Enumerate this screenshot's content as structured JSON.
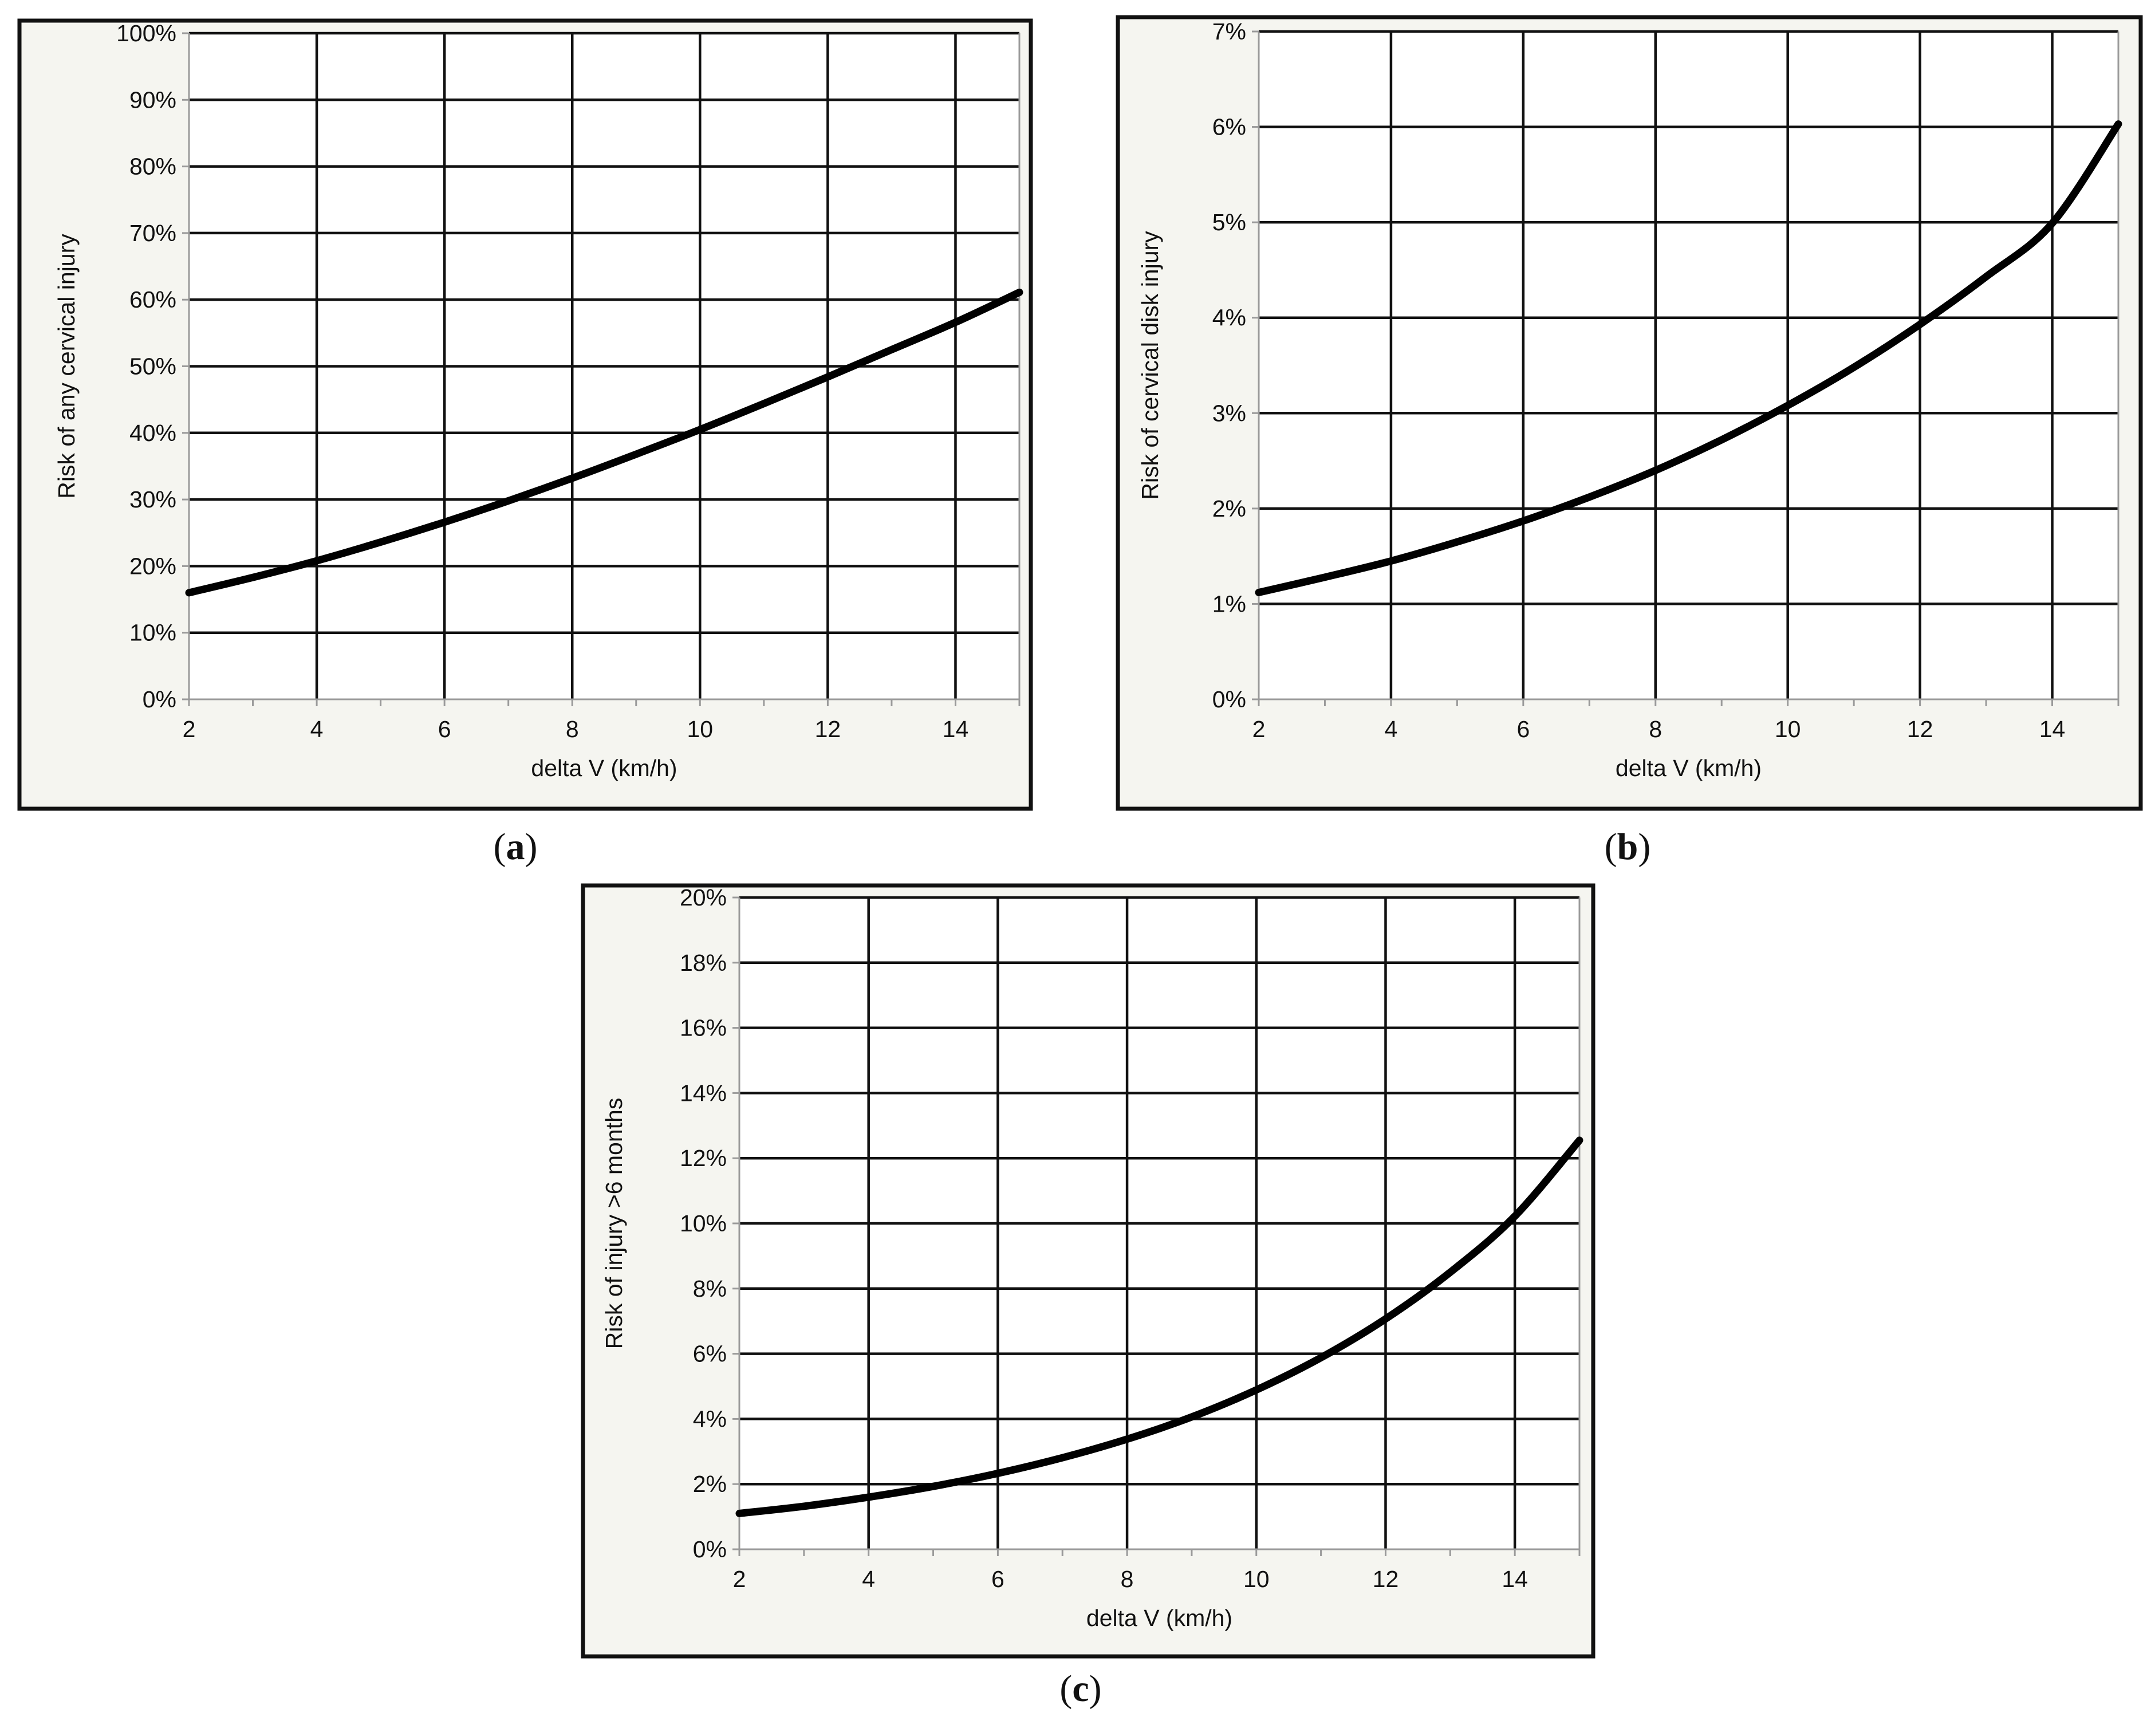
{
  "chart_data": [
    {
      "type": "line",
      "caption": "a",
      "xlabel": "delta V (km/h)",
      "ylabel": "Risk of any cervical injury",
      "xlim": [
        2,
        15
      ],
      "ylim": [
        0,
        1.0
      ],
      "xticks": [
        "2",
        "4",
        "6",
        "8",
        "10",
        "12",
        "14"
      ],
      "xtick_values": [
        2,
        4,
        6,
        8,
        10,
        12,
        14
      ],
      "yticks": [
        "0%",
        "10%",
        "20%",
        "30%",
        "40%",
        "50%",
        "60%",
        "70%",
        "80%",
        "90%",
        "100%"
      ],
      "ytick_values": [
        0,
        0.1,
        0.2,
        0.3,
        0.4,
        0.5,
        0.6,
        0.7,
        0.8,
        0.9,
        1.0
      ],
      "grid": true,
      "series": [
        {
          "x": [
            2,
            3,
            4,
            5,
            6,
            7,
            8,
            9,
            10,
            11,
            12,
            13,
            14,
            15
          ],
          "values": [
            0.16,
            0.183,
            0.208,
            0.236,
            0.266,
            0.298,
            0.332,
            0.368,
            0.405,
            0.444,
            0.484,
            0.525,
            0.566,
            0.611
          ]
        }
      ]
    },
    {
      "type": "line",
      "caption": "b",
      "xlabel": "delta V (km/h)",
      "ylabel": "Risk of cervical disk injury",
      "xlim": [
        2,
        15
      ],
      "ylim": [
        0,
        0.07
      ],
      "xticks": [
        "2",
        "4",
        "6",
        "8",
        "10",
        "12",
        "14"
      ],
      "xtick_values": [
        2,
        4,
        6,
        8,
        10,
        12,
        14
      ],
      "yticks": [
        "0%",
        "1%",
        "2%",
        "3%",
        "4%",
        "5%",
        "6%",
        "7%"
      ],
      "ytick_values": [
        0,
        0.01,
        0.02,
        0.03,
        0.04,
        0.05,
        0.06,
        0.07
      ],
      "grid": true,
      "series": [
        {
          "x": [
            2,
            3,
            4,
            5,
            6,
            7,
            8,
            9,
            10,
            11,
            12,
            13,
            14,
            15
          ],
          "values": [
            0.0112,
            0.0128,
            0.0145,
            0.0165,
            0.0187,
            0.0212,
            0.024,
            0.0272,
            0.0308,
            0.0348,
            0.0393,
            0.0443,
            0.0499,
            0.0603
          ]
        }
      ]
    },
    {
      "type": "line",
      "caption": "c",
      "xlabel": "delta V (km/h)",
      "ylabel": "Risk of injury >6 months",
      "xlim": [
        2,
        15
      ],
      "ylim": [
        0,
        0.2
      ],
      "xticks": [
        "2",
        "4",
        "6",
        "8",
        "10",
        "12",
        "14"
      ],
      "xtick_values": [
        2,
        4,
        6,
        8,
        10,
        12,
        14
      ],
      "yticks": [
        "0%",
        "2%",
        "4%",
        "6%",
        "8%",
        "10%",
        "12%",
        "14%",
        "16%",
        "18%",
        "20%"
      ],
      "ytick_values": [
        0,
        0.02,
        0.04,
        0.06,
        0.08,
        0.1,
        0.12,
        0.14,
        0.16,
        0.18,
        0.2
      ],
      "grid": true,
      "series": [
        {
          "x": [
            2,
            3,
            4,
            5,
            6,
            7,
            8,
            9,
            10,
            11,
            12,
            13,
            14,
            15
          ],
          "values": [
            0.011,
            0.0132,
            0.016,
            0.0193,
            0.0233,
            0.0281,
            0.0338,
            0.0406,
            0.0489,
            0.0588,
            0.0707,
            0.085,
            0.1022,
            0.1255
          ]
        }
      ]
    }
  ],
  "captions": [
    "a",
    "b",
    "c"
  ]
}
